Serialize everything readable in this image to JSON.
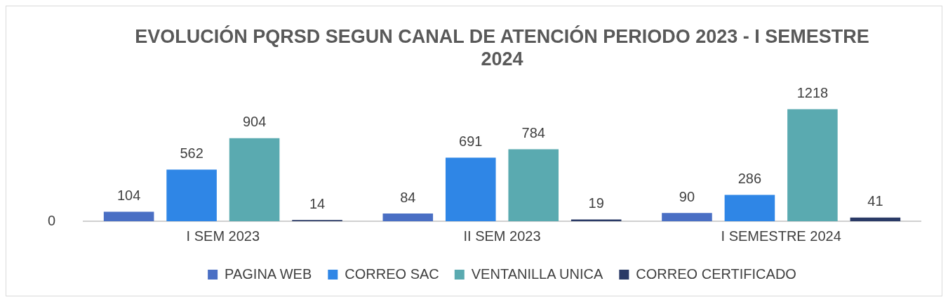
{
  "chart_data": {
    "type": "bar",
    "title": "EVOLUCIÓN PQRSD SEGUN CANAL DE ATENCIÓN PERIODO 2023 - I SEMESTRE 2024",
    "categories": [
      "I SEM 2023",
      "II SEM 2023",
      "I SEMESTRE 2024"
    ],
    "series": [
      {
        "name": "PAGINA WEB",
        "color": "#4a6fc4",
        "values": [
          104,
          84,
          90
        ]
      },
      {
        "name": "CORREO SAC",
        "color": "#2f86e6",
        "values": [
          562,
          691,
          286
        ]
      },
      {
        "name": "VENTANILLA UNICA",
        "color": "#5aaab0",
        "values": [
          904,
          784,
          1218
        ]
      },
      {
        "name": "CORREO CERTIFICADO",
        "color": "#2a3a66",
        "values": [
          14,
          19,
          41
        ]
      }
    ],
    "annotations": [
      "0"
    ],
    "grid": false,
    "legend": "bottom",
    "data_labels": true
  }
}
